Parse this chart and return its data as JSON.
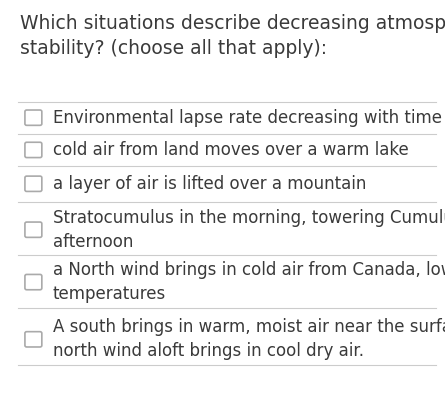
{
  "title": "Which situations describe decreasing atmospheric\nstability? (choose all that apply):",
  "title_fontsize": 13.5,
  "title_color": "#3a3a3a",
  "background_color": "#ffffff",
  "options": [
    "Environmental lapse rate decreasing with time",
    "cold air from land moves over a warm lake",
    "a layer of air is lifted over a mountain",
    "Stratocumulus in the morning, towering Cumulus in the\nafternoon",
    "a North wind brings in cold air from Canada, lowering surface\ntemperatures",
    "A south brings in warm, moist air near the surface, while a\nnorth wind aloft brings in cool dry air."
  ],
  "option_fontsize": 12.0,
  "option_color": "#3a3a3a",
  "checkbox_color": "#aaaaaa",
  "separator_color": "#cccccc",
  "separator_lw": 0.8
}
